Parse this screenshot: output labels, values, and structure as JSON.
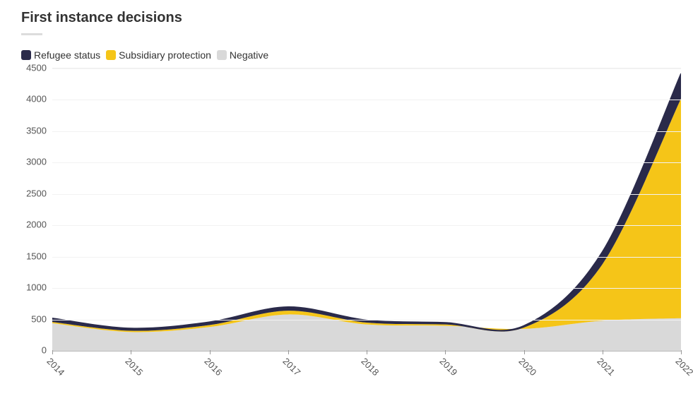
{
  "title": "First instance decisions",
  "legend": {
    "items": [
      {
        "key": "refugee",
        "label": "Refugee status",
        "color": "#2a2a4a"
      },
      {
        "key": "subsidiary",
        "label": "Subsidiary protection",
        "color": "#f5c518"
      },
      {
        "key": "negative",
        "label": "Negative",
        "color": "#d9d9d9"
      }
    ]
  },
  "chart": {
    "type": "area-stacked",
    "background_color": "#ffffff",
    "grid_color": "#f2f2f2",
    "axis_text_color": "#555555",
    "title_fontsize": 20,
    "label_fontsize": 13,
    "x": {
      "categories": [
        "2014",
        "2015",
        "2016",
        "2017",
        "2018",
        "2019",
        "2020",
        "2021",
        "2022"
      ],
      "tick_rotation_deg": 45
    },
    "y": {
      "min": 0,
      "max": 4500,
      "tick_step": 500,
      "ticks": [
        0,
        500,
        1000,
        1500,
        2000,
        2500,
        3000,
        3500,
        4000,
        4500
      ]
    },
    "series": [
      {
        "key": "negative",
        "label": "Negative",
        "color": "#d9d9d9",
        "values": [
          440,
          300,
          380,
          580,
          420,
          400,
          350,
          480,
          520
        ]
      },
      {
        "key": "subsidiary",
        "label": "Subsidiary protection",
        "color": "#f5c518",
        "values": [
          20,
          20,
          30,
          60,
          30,
          20,
          20,
          900,
          3500
        ]
      },
      {
        "key": "refugee",
        "label": "Refugee status",
        "color": "#2a2a4a",
        "values": [
          60,
          40,
          50,
          60,
          40,
          30,
          30,
          200,
          400
        ]
      }
    ],
    "line_width": 1.5,
    "smooth": true
  }
}
